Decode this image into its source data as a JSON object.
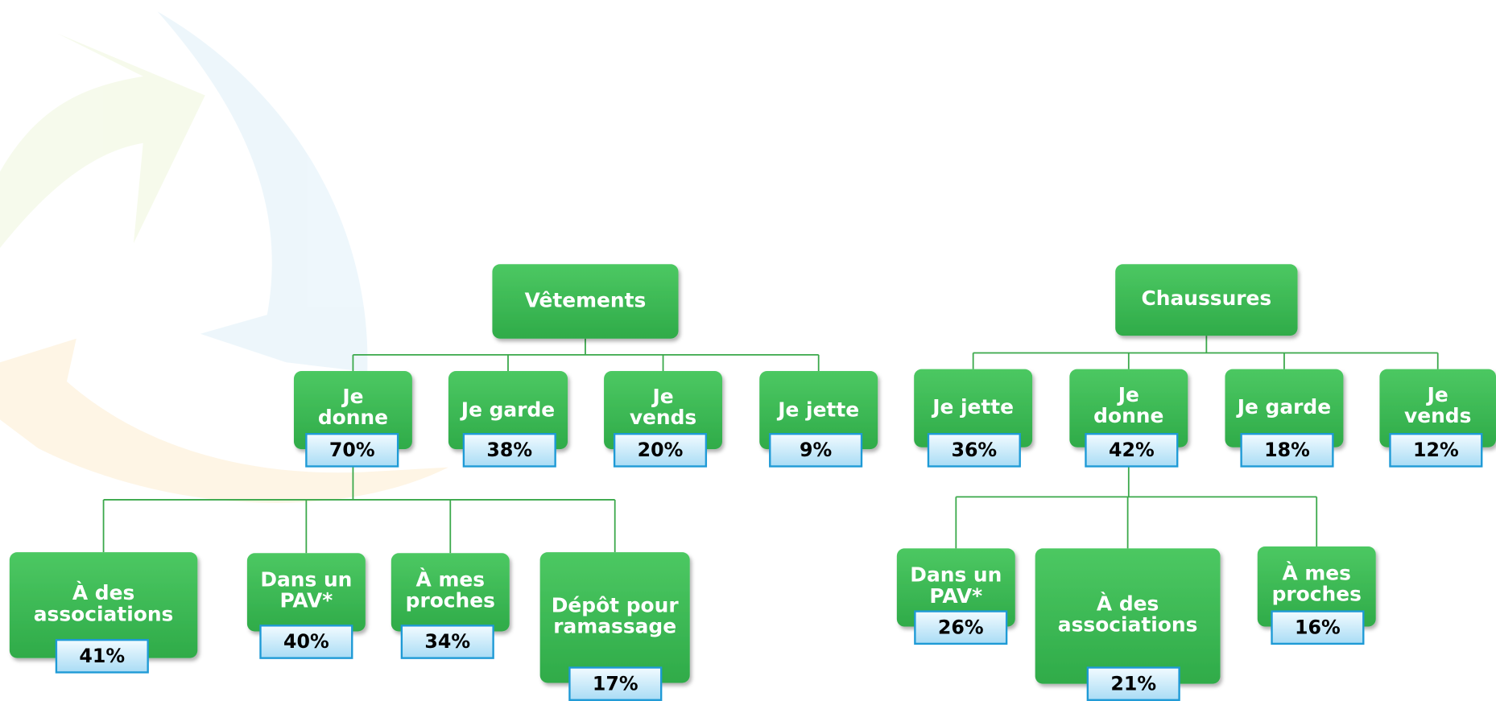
{
  "trees": [
    {
      "root": {
        "lines": [
          "Vêtements"
        ]
      },
      "children": [
        {
          "lines": [
            "Je",
            "donne"
          ],
          "percent": "70%",
          "children": [
            {
              "lines": [
                "À des",
                "associations"
              ],
              "percent": "41%"
            },
            {
              "lines": [
                "Dans un",
                "PAV*"
              ],
              "percent": "40%"
            },
            {
              "lines": [
                "À mes",
                "proches"
              ],
              "percent": "34%"
            },
            {
              "lines": [
                "Dépôt pour",
                "ramassage"
              ],
              "percent": "17%"
            }
          ]
        },
        {
          "lines": [
            "Je garde"
          ],
          "percent": "38%"
        },
        {
          "lines": [
            "Je",
            "vends"
          ],
          "percent": "20%"
        },
        {
          "lines": [
            "Je jette"
          ],
          "percent": "9%"
        }
      ]
    },
    {
      "root": {
        "lines": [
          "Chaussures"
        ]
      },
      "children": [
        {
          "lines": [
            "Je jette"
          ],
          "percent": "36%"
        },
        {
          "lines": [
            "Je",
            "donne"
          ],
          "percent": "42%",
          "children": [
            {
              "lines": [
                "Dans un",
                "PAV*"
              ],
              "percent": "26%"
            },
            {
              "lines": [
                "À des",
                "associations"
              ],
              "percent": "21%"
            },
            {
              "lines": [
                "À mes",
                "proches"
              ],
              "percent": "16%"
            }
          ]
        },
        {
          "lines": [
            "Je garde"
          ],
          "percent": "18%"
        },
        {
          "lines": [
            "Je",
            "vends"
          ],
          "percent": "12%"
        }
      ]
    }
  ]
}
